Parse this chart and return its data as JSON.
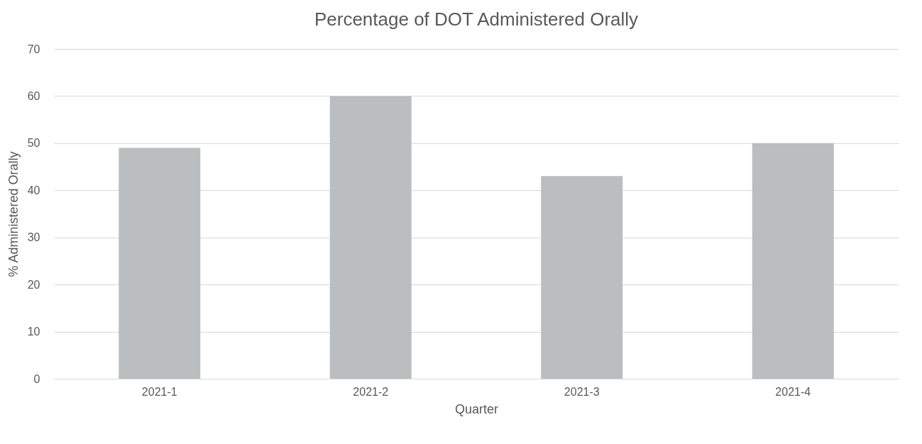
{
  "chart_data": {
    "type": "bar",
    "title": "Percentage of DOT Administered Orally",
    "xlabel": "Quarter",
    "ylabel": "% Administered Orally",
    "categories": [
      "2021-1",
      "2021-2",
      "2021-3",
      "2021-4"
    ],
    "values": [
      49,
      60,
      43,
      50
    ],
    "color": "#bcbdbf",
    "ylim": [
      0,
      70
    ],
    "yticks": [
      0,
      10,
      20,
      30,
      40,
      50,
      60,
      70
    ],
    "grid": "y"
  }
}
